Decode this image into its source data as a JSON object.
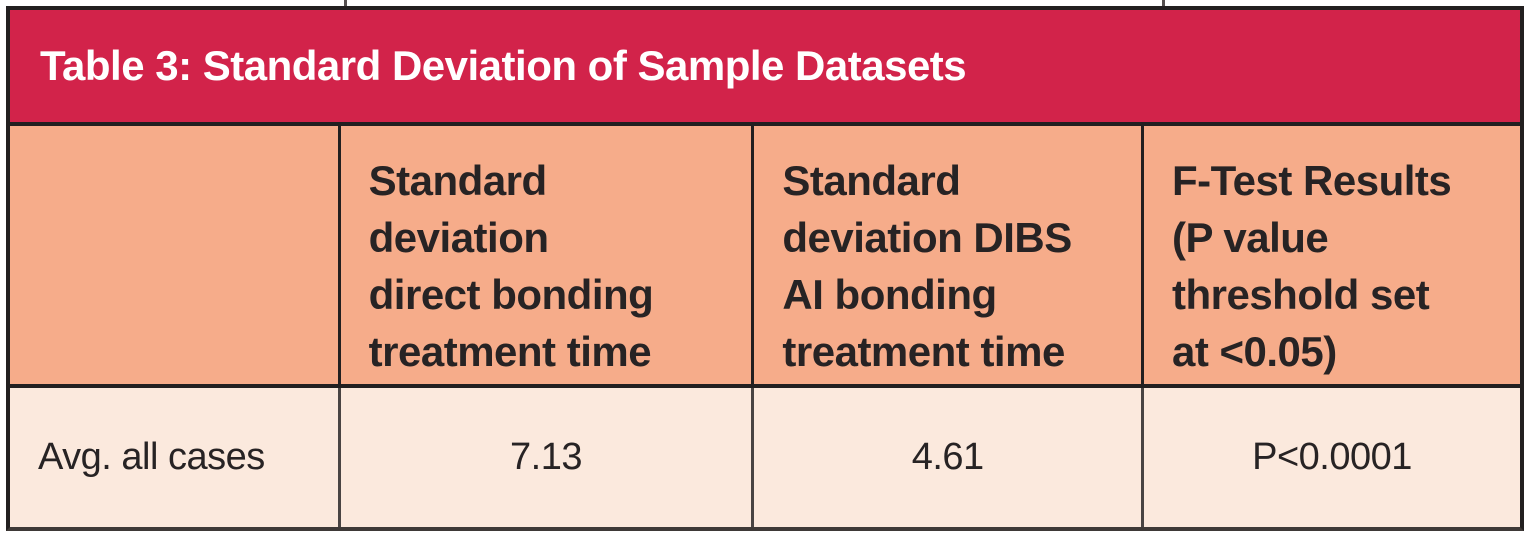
{
  "table": {
    "title": "Table 3: Standard Deviation of Sample Datasets",
    "column_headers": [
      "",
      "Standard\ndeviation\ndirect bonding\ntreatment time",
      "Standard\ndeviation DIBS\nAI bonding\ntreatment time",
      "F-Test Results\n(P value\nthreshold set\nat <0.05)"
    ],
    "rows": [
      {
        "label": "Avg. all cases",
        "values": [
          "7.13",
          "4.61",
          "P<0.0001"
        ]
      }
    ]
  },
  "chart_data": {
    "type": "table",
    "title": "Table 3: Standard Deviation of Sample Datasets",
    "columns": [
      "",
      "Standard deviation direct bonding treatment time",
      "Standard deviation DIBS AI bonding treatment time",
      "F-Test Results (P value threshold set at <0.05)"
    ],
    "rows": [
      [
        "Avg. all cases",
        7.13,
        4.61,
        "P<0.0001"
      ]
    ]
  },
  "colors": {
    "title_bar_bg": "#d2234a",
    "title_text": "#ffffff",
    "header_row_bg": "#f6ac8a",
    "data_row_bg": "#fbe9dd",
    "body_text": "#272324",
    "border": "#221f20"
  }
}
